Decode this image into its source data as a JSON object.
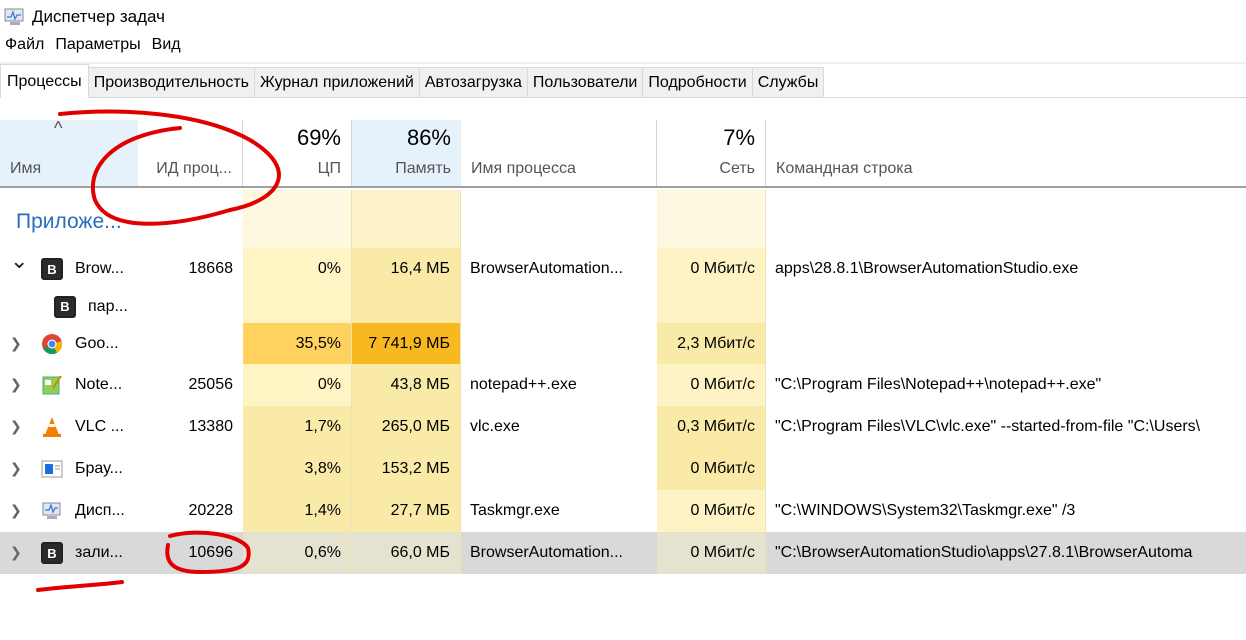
{
  "window": {
    "title": "Диспетчер задач",
    "icon": "task-manager-icon"
  },
  "menu": [
    "Файл",
    "Параметры",
    "Вид"
  ],
  "tabs": [
    "Процессы",
    "Производительность",
    "Журнал приложений",
    "Автозагрузка",
    "Пользователи",
    "Подробности",
    "Службы"
  ],
  "active_tab": "Процессы",
  "columns": {
    "name": "Имя",
    "pid": "ИД проц...",
    "cpu": "ЦП",
    "cpu_total": "69%",
    "memory": "Память",
    "memory_total": "86%",
    "process_name": "Имя процесса",
    "network": "Сеть",
    "network_total": "7%",
    "command": "Командная строка"
  },
  "sort_indicator": "^",
  "group": "Приложе...",
  "rows": [
    {
      "name": "Brow...",
      "pid": "18668",
      "cpu": "0%",
      "mem": "16,4 МБ",
      "proc": "BrowserAutomation...",
      "net": "0 Мбит/с",
      "cmd": "apps\\28.8.1\\BrowserAutomationStudio.exe",
      "icon": "bas-icon",
      "expanded": true
    },
    {
      "name": "пар...",
      "pid": "",
      "cpu": "",
      "mem": "",
      "proc": "",
      "net": "",
      "cmd": "",
      "icon": "bas-icon",
      "child": true
    },
    {
      "name": "Goo...",
      "pid": "",
      "cpu": "35,5%",
      "mem": "7 741,9 МБ",
      "proc": "",
      "net": "2,3 Мбит/с",
      "cmd": "",
      "icon": "chrome-icon"
    },
    {
      "name": "Note...",
      "pid": "25056",
      "cpu": "0%",
      "mem": "43,8 МБ",
      "proc": "notepad++.exe",
      "net": "0 Мбит/с",
      "cmd": "\"C:\\Program Files\\Notepad++\\notepad++.exe\"",
      "icon": "notepad-plus-plus-icon"
    },
    {
      "name": "VLC ...",
      "pid": "13380",
      "cpu": "1,7%",
      "mem": "265,0 МБ",
      "proc": "vlc.exe",
      "net": "0,3 Мбит/с",
      "cmd": "\"C:\\Program Files\\VLC\\vlc.exe\" --started-from-file \"C:\\Users\\",
      "icon": "vlc-icon"
    },
    {
      "name": "Брау...",
      "pid": "",
      "cpu": "3,8%",
      "mem": "153,2 МБ",
      "proc": "",
      "net": "0 Мбит/с",
      "cmd": "",
      "icon": "browser-window-icon"
    },
    {
      "name": "Дисп...",
      "pid": "20228",
      "cpu": "1,4%",
      "mem": "27,7 МБ",
      "proc": "Taskmgr.exe",
      "net": "0 Мбит/с",
      "cmd": "\"C:\\WINDOWS\\System32\\Taskmgr.exe\" /3",
      "icon": "task-manager-icon"
    },
    {
      "name": "зали...",
      "pid": "10696",
      "cpu": "0,6%",
      "mem": "66,0 МБ",
      "proc": "BrowserAutomation...",
      "net": "0 Мбит/с",
      "cmd": "\"C:\\BrowserAutomationStudio\\apps\\27.8.1\\BrowserAutoma",
      "icon": "bas-icon",
      "selected": true
    }
  ],
  "colors": {
    "header_sorted": "#e5f1fb",
    "cpu_low": "#fff4c4",
    "mem_low": "#f9eaa8",
    "cpu_high": "#ffd25e",
    "mem_high": "#f8b820",
    "selected": "#d9d9d9",
    "annotation": "#e00000",
    "group_text": "#2a6ebb"
  }
}
